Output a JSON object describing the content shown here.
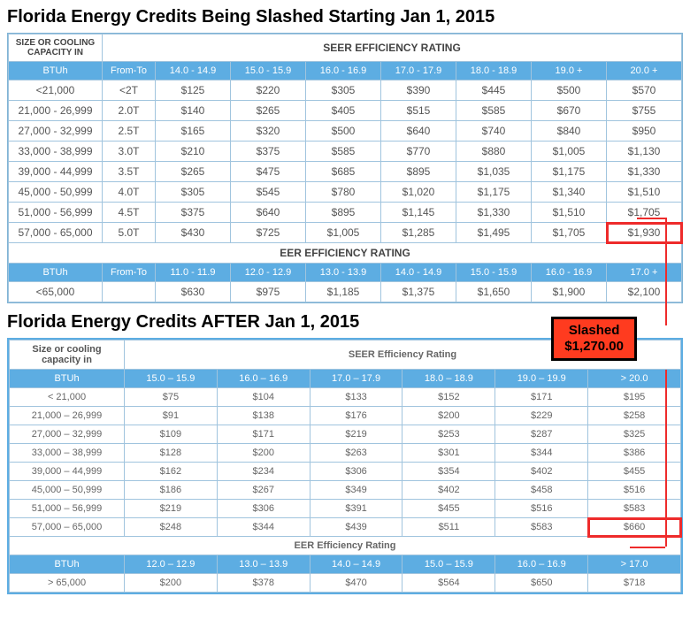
{
  "title_before": "Florida Energy Credits Being Slashed Starting Jan 1, 2015",
  "title_after": "Florida Energy Credits AFTER Jan 1, 2015",
  "slashed_label": "Slashed",
  "slashed_amount": "$1,270.00",
  "table1": {
    "size_header1": "SIZE OR COOLING",
    "size_header2": "CAPACITY IN",
    "seer_header": "SEER EFFICIENCY RATING",
    "btuh": "BTUh",
    "fromto": "From-To",
    "seer_cols": [
      "14.0 - 14.9",
      "15.0 - 15.9",
      "16.0 - 16.9",
      "17.0 - 17.9",
      "18.0 - 18.9",
      "19.0 +",
      "20.0 +"
    ],
    "rows": [
      {
        "btu": "<21,000",
        "ft": "<2T",
        "v": [
          "$125",
          "$220",
          "$305",
          "$390",
          "$445",
          "$500",
          "$570"
        ]
      },
      {
        "btu": "21,000 - 26,999",
        "ft": "2.0T",
        "v": [
          "$140",
          "$265",
          "$405",
          "$515",
          "$585",
          "$670",
          "$755"
        ]
      },
      {
        "btu": "27,000 - 32,999",
        "ft": "2.5T",
        "v": [
          "$165",
          "$320",
          "$500",
          "$640",
          "$740",
          "$840",
          "$950"
        ]
      },
      {
        "btu": "33,000 - 38,999",
        "ft": "3.0T",
        "v": [
          "$210",
          "$375",
          "$585",
          "$770",
          "$880",
          "$1,005",
          "$1,130"
        ]
      },
      {
        "btu": "39,000 - 44,999",
        "ft": "3.5T",
        "v": [
          "$265",
          "$475",
          "$685",
          "$895",
          "$1,035",
          "$1,175",
          "$1,330"
        ]
      },
      {
        "btu": "45,000 - 50,999",
        "ft": "4.0T",
        "v": [
          "$305",
          "$545",
          "$780",
          "$1,020",
          "$1,175",
          "$1,340",
          "$1,510"
        ]
      },
      {
        "btu": "51,000 - 56,999",
        "ft": "4.5T",
        "v": [
          "$375",
          "$640",
          "$895",
          "$1,145",
          "$1,330",
          "$1,510",
          "$1,705"
        ]
      },
      {
        "btu": "57,000 - 65,000",
        "ft": "5.0T",
        "v": [
          "$430",
          "$725",
          "$1,005",
          "$1,285",
          "$1,495",
          "$1,705",
          "$1,930"
        ]
      }
    ],
    "eer_header": "EER EFFICIENCY RATING",
    "eer_cols": [
      "11.0 - 11.9",
      "12.0 - 12.9",
      "13.0 - 13.9",
      "14.0 - 14.9",
      "15.0 - 15.9",
      "16.0 - 16.9",
      "17.0 +"
    ],
    "eer_row": {
      "btu": "<65,000",
      "ft": "",
      "v": [
        "$630",
        "$975",
        "$1,185",
        "$1,375",
        "$1,650",
        "$1,900",
        "$2,100"
      ]
    }
  },
  "table2": {
    "size_header1": "Size or cooling",
    "size_header2": "capacity in",
    "seer_header": "SEER Efficiency Rating",
    "btuh": "BTUh",
    "seer_cols": [
      "15.0 – 15.9",
      "16.0 – 16.9",
      "17.0 – 17.9",
      "18.0 – 18.9",
      "19.0 – 19.9",
      "> 20.0"
    ],
    "rows": [
      {
        "btu": "< 21,000",
        "v": [
          "$75",
          "$104",
          "$133",
          "$152",
          "$171",
          "$195"
        ]
      },
      {
        "btu": "21,000 – 26,999",
        "v": [
          "$91",
          "$138",
          "$176",
          "$200",
          "$229",
          "$258"
        ]
      },
      {
        "btu": "27,000 – 32,999",
        "v": [
          "$109",
          "$171",
          "$219",
          "$253",
          "$287",
          "$325"
        ]
      },
      {
        "btu": "33,000 – 38,999",
        "v": [
          "$128",
          "$200",
          "$263",
          "$301",
          "$344",
          "$386"
        ]
      },
      {
        "btu": "39,000 – 44,999",
        "v": [
          "$162",
          "$234",
          "$306",
          "$354",
          "$402",
          "$455"
        ]
      },
      {
        "btu": "45,000 – 50,999",
        "v": [
          "$186",
          "$267",
          "$349",
          "$402",
          "$458",
          "$516"
        ]
      },
      {
        "btu": "51,000 – 56,999",
        "v": [
          "$219",
          "$306",
          "$391",
          "$455",
          "$516",
          "$583"
        ]
      },
      {
        "btu": "57,000 – 65,000",
        "v": [
          "$248",
          "$344",
          "$439",
          "$511",
          "$583",
          "$660"
        ]
      }
    ],
    "eer_header": "EER Efficiency Rating",
    "eer_cols": [
      "12.0 – 12.9",
      "13.0 – 13.9",
      "14.0 – 14.9",
      "15.0 – 15.9",
      "16.0 – 16.9",
      "> 17.0"
    ],
    "eer_row": {
      "btu": "> 65,000",
      "v": [
        "$200",
        "$378",
        "$470",
        "$564",
        "$650",
        "$718"
      ]
    }
  },
  "styling": {
    "header_bg": "#5dade2",
    "border_color": "#a0c4de",
    "highlight_color": "#ee2b2b",
    "slashed_bg": "#ff3b1f",
    "text_color": "#555",
    "title_fontsize": 20,
    "cell_fontsize": 12,
    "cell_fontsize_t2": 11
  }
}
